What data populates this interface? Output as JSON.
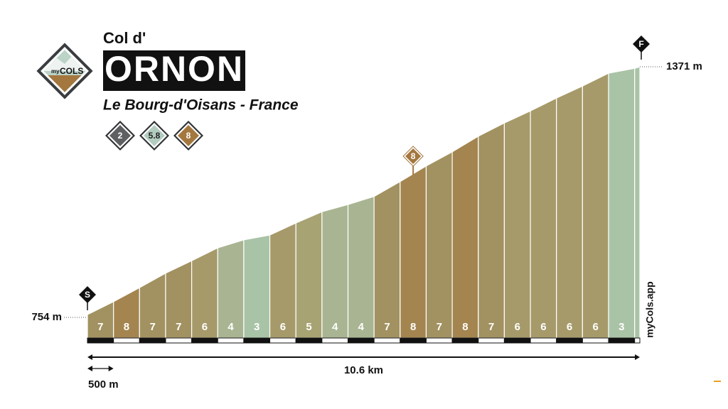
{
  "header": {
    "prefix": "Col d'",
    "name": "ORNON",
    "location": "Le Bourg-d'Oisans - France",
    "logo": [
      "my",
      "COLS"
    ],
    "badges": [
      {
        "value": 2,
        "color": "#5f6062"
      },
      {
        "value": 5.8,
        "color": "#b3ccc0"
      },
      {
        "value": 8,
        "color": "#a3773e"
      }
    ]
  },
  "watermark": "myCols.app",
  "chart_data": {
    "type": "profile",
    "x": [
      0,
      0.5,
      1,
      1.5,
      2,
      2.5,
      3,
      3.5,
      4,
      4.5,
      5,
      5.5,
      6,
      6.5,
      7,
      7.5,
      8,
      8.5,
      9,
      9.5,
      10,
      10.5,
      10.6
    ],
    "elevations": [
      754,
      786,
      821,
      857,
      888,
      920,
      940,
      952,
      982,
      1010,
      1028,
      1048,
      1085,
      1124,
      1159,
      1198,
      1231,
      1261,
      1293,
      1323,
      1355,
      1367,
      1371
    ],
    "gradients": [
      7,
      8,
      7,
      7,
      6,
      4,
      3,
      6,
      5,
      4,
      4,
      7,
      8,
      7,
      8,
      7,
      6,
      6,
      6,
      6,
      3,
      null
    ],
    "colors": [
      "#a29261",
      "#a4854f",
      "#a29261",
      "#a29261",
      "#a69a6a",
      "#a9b592",
      "#a9c3a6",
      "#a69a6a",
      "#a8a373",
      "#a9b592",
      "#a9b592",
      "#a29261",
      "#a4854f",
      "#a29261",
      "#a4854f",
      "#a29261",
      "#a69a6a",
      "#a69a6a",
      "#a69a6a",
      "#a69a6a",
      "#a9c3a6",
      "#a9c3a6"
    ],
    "xlim": [
      0,
      10.6
    ],
    "yticks": [
      {
        "value": 754,
        "label": "754 m"
      },
      {
        "value": 1371,
        "label": "1371 m"
      }
    ],
    "distance": {
      "value": 10.6,
      "label": "10.6 km"
    },
    "scale": {
      "value": 0.5,
      "label": "500 m"
    },
    "start_marker": "S",
    "end_marker": "F",
    "max_marker": 8,
    "max_marker_color": "#a3773e"
  }
}
